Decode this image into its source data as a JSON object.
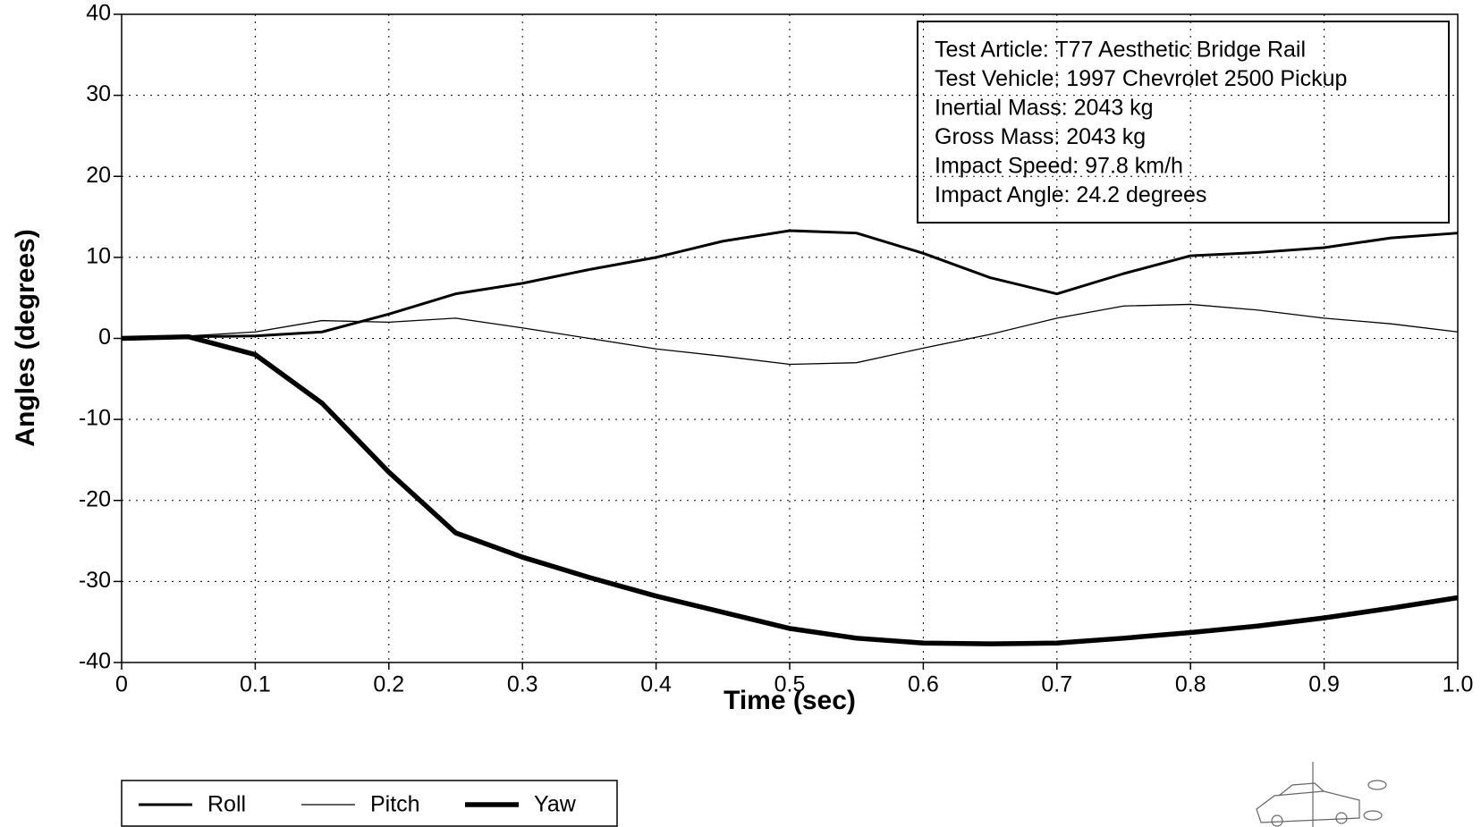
{
  "chart_data": {
    "type": "line",
    "x_label": "Time (sec)",
    "y_label": "Angles (degrees)",
    "annotations": [
      "Test Article: T77 Aesthetic Bridge Rail",
      "Test Vehicle: 1997 Chevrolet 2500 Pickup",
      "Inertial Mass: 2043 kg",
      "Gross Mass: 2043 kg",
      "Impact Speed: 97.8 km/h",
      "Impact Angle: 24.2 degrees"
    ],
    "x": [
      0,
      0.05,
      0.1,
      0.15,
      0.2,
      0.25,
      0.3,
      0.35,
      0.4,
      0.45,
      0.5,
      0.55,
      0.6,
      0.65,
      0.7,
      0.75,
      0.8,
      0.85,
      0.9,
      0.95,
      1
    ],
    "series": [
      {
        "name": "Roll",
        "color": "#000000",
        "values": [
          0,
          0.2,
          0.3,
          0.8,
          3,
          5.5,
          6.8,
          8.5,
          10,
          12,
          13.3,
          13,
          10.5,
          7.5,
          5.5,
          8,
          10.2,
          10.6,
          11.2,
          12.4,
          13
        ]
      },
      {
        "name": "Pitch",
        "color": "#000000",
        "values": [
          0,
          0.3,
          0.8,
          2.2,
          2,
          2.5,
          1.3,
          0,
          -1.3,
          -2.2,
          -3.2,
          -3,
          -1.2,
          0.5,
          2.5,
          4,
          4.2,
          3.5,
          2.5,
          1.8,
          0.8
        ]
      },
      {
        "name": "Yaw",
        "color": "#000000",
        "values": [
          0,
          0.2,
          -2,
          -8,
          -16.5,
          -24,
          -27,
          -29.5,
          -31.8,
          -33.8,
          -35.8,
          -37,
          -37.6,
          -37.7,
          -37.6,
          -37,
          -36.3,
          -35.5,
          -34.5,
          -33.3,
          -32
        ]
      }
    ],
    "xlim": [
      0,
      1
    ],
    "xticks": [
      0,
      0.1,
      0.2,
      0.3,
      0.4,
      0.5,
      0.6,
      0.7,
      0.8,
      0.9,
      {
        "value": 1,
        "label": "1.0"
      }
    ],
    "ylim": [
      -40,
      40
    ],
    "yticks": [
      -40,
      -30,
      -20,
      -10,
      0,
      10,
      20,
      30,
      40
    ],
    "grid": true,
    "legend": "bottom-left"
  }
}
